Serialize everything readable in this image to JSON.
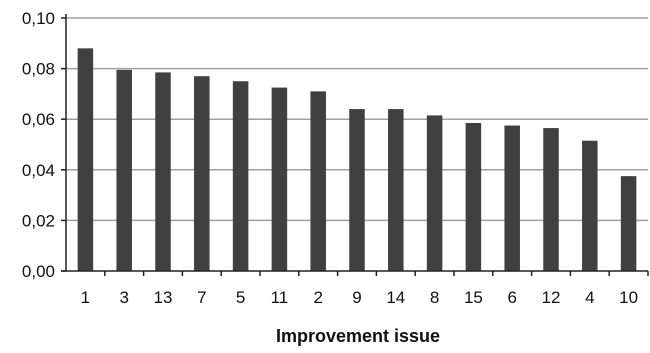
{
  "chart_data": {
    "type": "bar",
    "title": "",
    "xlabel": "Improvement issue",
    "ylabel": "",
    "categories": [
      "1",
      "3",
      "13",
      "7",
      "5",
      "11",
      "2",
      "9",
      "14",
      "8",
      "15",
      "6",
      "12",
      "4",
      "10"
    ],
    "values": [
      0.088,
      0.0795,
      0.0785,
      0.077,
      0.075,
      0.0725,
      0.071,
      0.064,
      0.064,
      0.0615,
      0.0585,
      0.0575,
      0.0565,
      0.0515,
      0.0375
    ],
    "ylim": [
      0,
      0.1
    ],
    "yticks": [
      "0,00",
      "0,02",
      "0,04",
      "0,06",
      "0,08",
      "0,10"
    ],
    "grid": true,
    "bar_color": "#404040",
    "grid_color": "#a0a0a0"
  }
}
